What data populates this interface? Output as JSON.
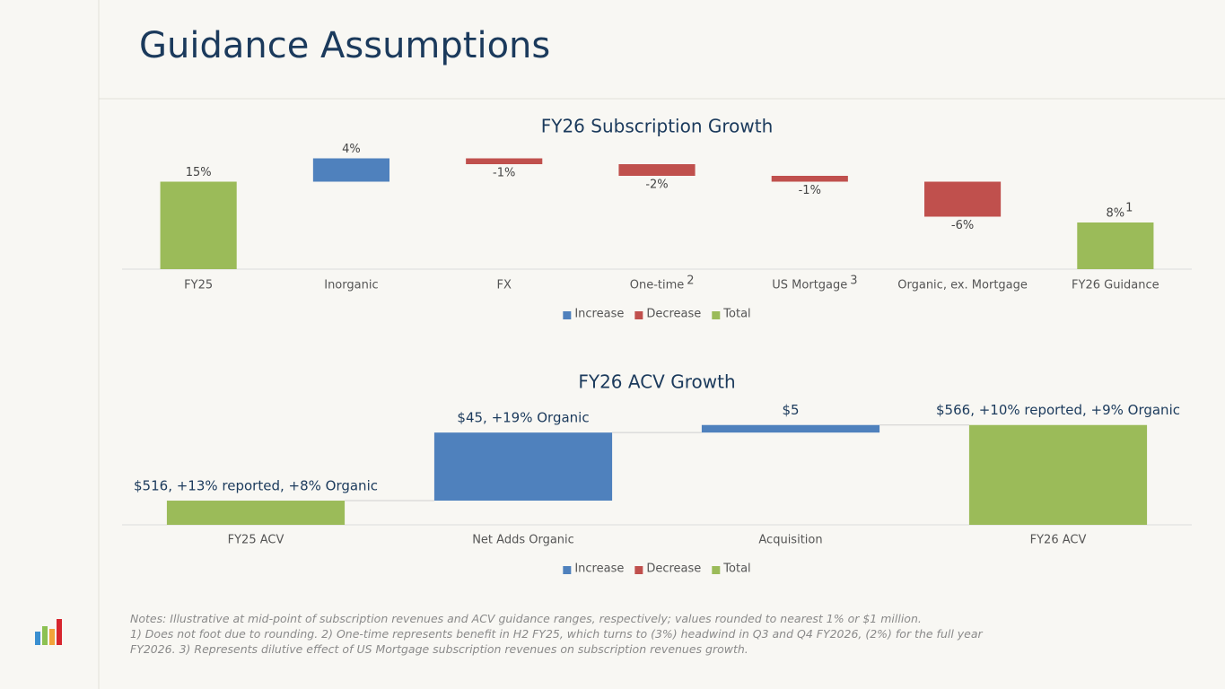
{
  "title": "Guidance Assumptions",
  "notes": [
    "Notes: Illustrative at mid-point of subscription revenues and ACV guidance ranges, respectively; values rounded to nearest 1% or $1 million.",
    "1) Does not foot due to rounding. 2) One-time represents benefit in H2 FY25, which turns to  (3%) headwind in Q3 and Q4 FY2026, (2%) for the full year",
    "FY2026. 3) Represents dilutive effect of US Mortgage subscription revenues on subscription revenues growth."
  ],
  "chart_data": [
    {
      "type": "waterfall",
      "title": "FY26 Subscription Growth",
      "categories": [
        "FY25",
        "Inorganic",
        "FX",
        "One-time",
        "US Mortgage",
        "Organic, ex. Mortgage",
        "FY26 Guidance"
      ],
      "category_notes": [
        null,
        null,
        null,
        "2",
        "3",
        null,
        null
      ],
      "ylim": [
        0,
        20
      ],
      "series": [
        {
          "name": "Increase",
          "color": "#4f81bd",
          "base": "running",
          "values": [
            null,
            4,
            null,
            null,
            null,
            null,
            null
          ],
          "value_labels": [
            null,
            "4%",
            null,
            null,
            null,
            null,
            null
          ]
        },
        {
          "name": "Decrease",
          "color": "#c0504d",
          "base": "running",
          "values": [
            null,
            null,
            -1,
            -2,
            -1,
            -6,
            null
          ],
          "value_labels": [
            null,
            null,
            "-1%",
            "-2%",
            "-1%",
            "-6%",
            null
          ]
        },
        {
          "name": "Total",
          "color": "#9bbb59",
          "base": "zero",
          "values": [
            15,
            null,
            null,
            null,
            null,
            null,
            8
          ],
          "value_labels": [
            "15%",
            null,
            null,
            null,
            null,
            null,
            "8%"
          ],
          "label_notes": [
            null,
            null,
            null,
            null,
            null,
            null,
            "1"
          ]
        }
      ],
      "legend": "bottom",
      "connectors": false
    },
    {
      "type": "waterfall",
      "title": "FY26 ACV Growth",
      "categories": [
        "FY25 ACV",
        "Net Adds Organic",
        "Acquisition",
        "FY26 ACV"
      ],
      "ylim": [
        500,
        570
      ],
      "series": [
        {
          "name": "Increase",
          "color": "#4f81bd",
          "base": "running",
          "values": [
            null,
            45,
            5,
            null
          ],
          "value_labels": [
            null,
            "$45, +19% Organic",
            "$5",
            null
          ]
        },
        {
          "name": "Decrease",
          "color": "#c0504d",
          "base": "running",
          "values": [
            null,
            null,
            null,
            null
          ]
        },
        {
          "name": "Total",
          "color": "#9bbb59",
          "base": "zero",
          "values": [
            516,
            null,
            null,
            566
          ],
          "value_labels": [
            "$516, +13% reported, +8% Organic",
            null,
            null,
            "$566, +10% reported, +9% Organic"
          ]
        }
      ],
      "legend": "bottom",
      "connectors": true
    }
  ]
}
